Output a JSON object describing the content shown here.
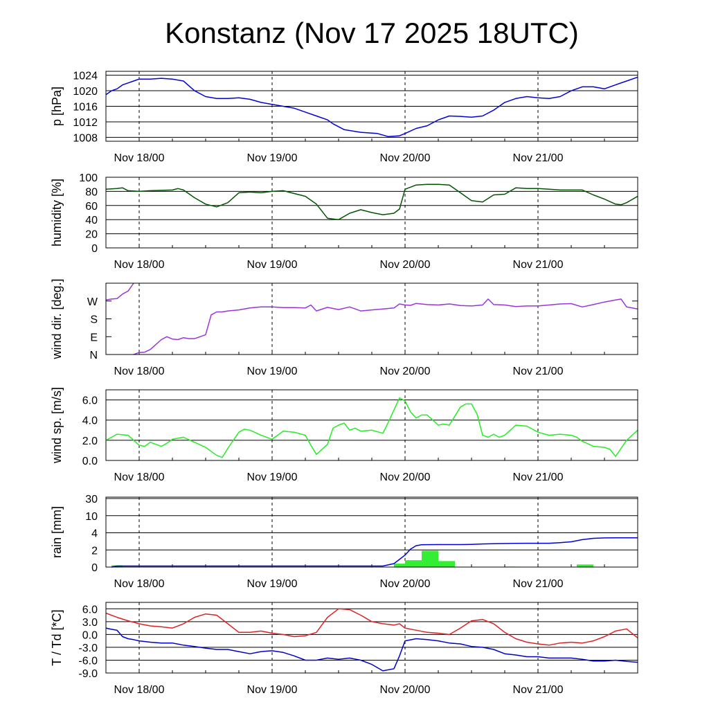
{
  "title": "Konstanz (Nov 17 2025 18UTC)",
  "colors": {
    "pressure": "#0000dd",
    "humidity": "#005500",
    "wind_dir": "#9933dd",
    "wind_speed": "#22ee22",
    "rain_bar": "#33ee33",
    "rain_cum": "#0000dd",
    "temperature": "#dd2222",
    "dewpoint": "#0000cc"
  },
  "chart_data": [
    {
      "id": "pressure",
      "type": "line",
      "ylabel": "p [hPa]",
      "ylim": [
        1007,
        1025
      ],
      "yticks": [
        1008,
        1012,
        1016,
        1020,
        1024
      ],
      "ytick_labels": [
        "1008",
        "1012",
        "1016",
        "1020",
        "1024"
      ],
      "xlim": [
        0,
        96
      ],
      "x_ticks": [
        6,
        30,
        54,
        78
      ],
      "x_tick_labels": [
        "Nov 18/00",
        "Nov 19/00",
        "Nov 20/00",
        "Nov 21/00"
      ],
      "series": [
        {
          "name": "pressure",
          "x": [
            0,
            1,
            2,
            3,
            4,
            5,
            6,
            8,
            10,
            12,
            14,
            16,
            18,
            20,
            22,
            24,
            26,
            28,
            30,
            32,
            34,
            36,
            38,
            40,
            41,
            43,
            46,
            49,
            51,
            53,
            54,
            56,
            58,
            60,
            62,
            64,
            66,
            68,
            70,
            72,
            74,
            76,
            78,
            80,
            82,
            84,
            86,
            88,
            90,
            92,
            94,
            96
          ],
          "values": [
            1019,
            1020,
            1020.5,
            1021.5,
            1022,
            1022.5,
            1023,
            1023,
            1023.2,
            1023,
            1022.5,
            1020,
            1018.5,
            1018,
            1018,
            1018.2,
            1017.8,
            1017,
            1016.5,
            1016,
            1015.5,
            1014.5,
            1013.5,
            1012.5,
            1011.5,
            1010,
            1009.3,
            1009,
            1008.2,
            1008.4,
            1009,
            1010.3,
            1011,
            1012.5,
            1013.5,
            1013.4,
            1013.2,
            1013.5,
            1015,
            1017,
            1018,
            1018.5,
            1018.2,
            1018,
            1018.5,
            1020,
            1021,
            1021,
            1020.5,
            1021.5,
            1022.5,
            1023.5
          ]
        }
      ]
    },
    {
      "id": "humidity",
      "type": "line",
      "ylabel": "humidity [%]",
      "ylim": [
        0,
        100
      ],
      "yticks": [
        0,
        20,
        40,
        60,
        80,
        100
      ],
      "ytick_labels": [
        "0",
        "20",
        "40",
        "60",
        "80",
        "100"
      ],
      "xlim": [
        0,
        96
      ],
      "x_ticks": [
        6,
        30,
        54,
        78
      ],
      "x_tick_labels": [
        "Nov 18/00",
        "Nov 19/00",
        "Nov 20/00",
        "Nov 21/00"
      ],
      "series": [
        {
          "name": "humidity",
          "x": [
            0,
            2,
            3,
            4,
            6,
            8,
            10,
            12,
            13,
            14,
            16,
            18,
            20,
            22,
            24,
            26,
            28,
            30,
            32,
            34,
            36,
            38,
            40,
            42,
            44,
            46,
            48,
            50,
            52,
            53,
            54,
            56,
            58,
            60,
            62,
            64,
            66,
            68,
            70,
            72,
            74,
            76,
            78,
            80,
            82,
            84,
            86,
            88,
            90,
            92,
            93,
            94,
            96
          ],
          "values": [
            83,
            84,
            85,
            81,
            80,
            81,
            81.5,
            82,
            84,
            82,
            71,
            62,
            58,
            64,
            78,
            79,
            78,
            80,
            81,
            77,
            73,
            62,
            42,
            40,
            49,
            54,
            50,
            47,
            49,
            55,
            83,
            89,
            90,
            90,
            89,
            78,
            67,
            65,
            75,
            76,
            85,
            84,
            84,
            83,
            82,
            82,
            82,
            75,
            69,
            62,
            61,
            64,
            73
          ]
        }
      ]
    },
    {
      "id": "wind_direction",
      "type": "line",
      "ylabel": "wind dir. [deg.]",
      "ylim": [
        0,
        360
      ],
      "yticks": [
        0,
        90,
        180,
        270
      ],
      "ytick_labels": [
        "N",
        "E",
        "S",
        "W"
      ],
      "xlim": [
        0,
        96
      ],
      "x_ticks": [
        6,
        30,
        54,
        78
      ],
      "x_tick_labels": [
        "Nov 18/00",
        "Nov 19/00",
        "Nov 20/00",
        "Nov 21/00"
      ],
      "series": [
        {
          "name": "wind direction",
          "x": [
            0,
            1,
            2,
            3,
            4,
            5
          ],
          "values": [
            275,
            280,
            282,
            305,
            320,
            360
          ]
        },
        {
          "name": "wind direction (wrapped)",
          "x": [
            5,
            6,
            7,
            8,
            9,
            10,
            11,
            12,
            13,
            14,
            15,
            16,
            17,
            18,
            19,
            20,
            21,
            22,
            24,
            26,
            28,
            30,
            32,
            34,
            36,
            37,
            38,
            40,
            42,
            44,
            46,
            48,
            50,
            52,
            53,
            54,
            55,
            56,
            58,
            60,
            62,
            64,
            66,
            68,
            69,
            70,
            72,
            74,
            76,
            78,
            80,
            82,
            84,
            86,
            88,
            90,
            92,
            93,
            94,
            96
          ],
          "values": [
            0,
            10,
            12,
            25,
            50,
            75,
            90,
            78,
            75,
            85,
            80,
            80,
            90,
            100,
            200,
            215,
            215,
            220,
            225,
            235,
            240,
            240,
            237,
            237,
            235,
            250,
            220,
            238,
            227,
            240,
            220,
            225,
            230,
            235,
            255,
            250,
            248,
            258,
            252,
            250,
            255,
            247,
            245,
            250,
            280,
            252,
            250,
            242,
            245,
            245,
            250,
            255,
            257,
            240,
            252,
            265,
            275,
            280,
            240,
            230
          ]
        }
      ]
    },
    {
      "id": "wind_speed",
      "type": "line",
      "ylabel": "wind sp. [m/s]",
      "ylim": [
        0,
        7
      ],
      "yticks": [
        0,
        2,
        4,
        6
      ],
      "ytick_labels": [
        "0.0",
        "2.0",
        "4.0",
        "6.0"
      ],
      "xlim": [
        0,
        96
      ],
      "x_ticks": [
        6,
        30,
        54,
        78
      ],
      "x_tick_labels": [
        "Nov 18/00",
        "Nov 19/00",
        "Nov 20/00",
        "Nov 21/00"
      ],
      "series": [
        {
          "name": "wind speed",
          "x": [
            0,
            2,
            4,
            6,
            7,
            8,
            9,
            10,
            11,
            12,
            14,
            16,
            18,
            20,
            21,
            22,
            24,
            25,
            26,
            28,
            30,
            31,
            32,
            34,
            36,
            37,
            38,
            40,
            41,
            42,
            43,
            44,
            45,
            46,
            48,
            50,
            51,
            52,
            53,
            54,
            55,
            56,
            57,
            58,
            60,
            61,
            62,
            64,
            65,
            66,
            67,
            68,
            69,
            70,
            71,
            72,
            74,
            76,
            78,
            80,
            82,
            84,
            85,
            86,
            88,
            90,
            91,
            92,
            93,
            94,
            96
          ],
          "values": [
            2.0,
            2.6,
            2.5,
            1.5,
            1.4,
            1.8,
            1.6,
            1.4,
            1.7,
            2.1,
            2.3,
            1.8,
            1.3,
            0.5,
            0.3,
            1.2,
            2.8,
            3.1,
            3.0,
            2.5,
            2.1,
            2.5,
            2.9,
            2.8,
            2.5,
            1.5,
            0.6,
            1.6,
            3.2,
            3.5,
            3.7,
            3.0,
            3.2,
            2.9,
            3.0,
            2.7,
            3.8,
            5.0,
            6.2,
            5.9,
            4.8,
            4.2,
            4.5,
            4.5,
            3.5,
            3.6,
            3.5,
            5.3,
            5.6,
            5.6,
            4.6,
            2.5,
            2.3,
            2.6,
            2.3,
            2.5,
            3.5,
            3.4,
            2.8,
            2.5,
            2.6,
            2.5,
            2.3,
            1.9,
            1.4,
            1.3,
            1.1,
            0.4,
            1.2,
            2.0,
            3.0
          ]
        }
      ]
    },
    {
      "id": "rain",
      "type": "bar+line",
      "ylabel": "rain [mm]",
      "yticks": [
        0,
        2,
        4,
        10,
        30
      ],
      "ytick_labels": [
        "0",
        "2",
        "4",
        "10",
        "30"
      ],
      "xlim": [
        0,
        96
      ],
      "x_ticks": [
        6,
        30,
        54,
        78
      ],
      "x_tick_labels": [
        "Nov 18/00",
        "Nov 19/00",
        "Nov 20/00",
        "Nov 21/00"
      ],
      "series": [
        {
          "name": "hourly precipitation",
          "kind": "bar",
          "x_start": [
            1,
            52,
            54,
            57,
            60,
            72,
            85
          ],
          "x_end": [
            3,
            54,
            57,
            60,
            63,
            74,
            88
          ],
          "values": [
            0.2,
            0.4,
            0.8,
            1.9,
            0.7,
            0.05,
            0.3
          ]
        },
        {
          "name": "accumulated precipitation",
          "kind": "line",
          "x": [
            1,
            2,
            10,
            20,
            30,
            40,
            50,
            52,
            53,
            54,
            55,
            56,
            57,
            58,
            60,
            62,
            64,
            66,
            68,
            70,
            72,
            74,
            76,
            78,
            80,
            82,
            84,
            86,
            88,
            90,
            92,
            94,
            96
          ],
          "values": [
            0,
            0.12,
            0.12,
            0.12,
            0.12,
            0.12,
            0.12,
            0.4,
            0.9,
            1.4,
            2.1,
            2.5,
            2.6,
            2.62,
            2.63,
            2.63,
            2.63,
            2.65,
            2.7,
            2.72,
            2.75,
            2.77,
            2.78,
            2.78,
            2.78,
            2.85,
            2.95,
            3.2,
            3.35,
            3.4,
            3.42,
            3.42,
            3.42
          ]
        }
      ]
    },
    {
      "id": "temperature",
      "type": "line",
      "ylabel": "T / Td [*C]",
      "ylim": [
        -9,
        7.5
      ],
      "yticks": [
        -9,
        -6,
        -3,
        0,
        3,
        6
      ],
      "ytick_labels": [
        "-9.0",
        "-6.0",
        "-3.0",
        "0.0",
        "3.0",
        "6.0"
      ],
      "xlim": [
        0,
        96
      ],
      "x_ticks": [
        6,
        30,
        54,
        78
      ],
      "x_tick_labels": [
        "Nov 18/00",
        "Nov 19/00",
        "Nov 20/00",
        "Nov 21/00"
      ],
      "series": [
        {
          "name": "temperature",
          "x": [
            0,
            2,
            4,
            6,
            8,
            10,
            12,
            14,
            16,
            18,
            20,
            22,
            24,
            26,
            28,
            30,
            32,
            34,
            36,
            38,
            40,
            42,
            44,
            46,
            48,
            50,
            52,
            53,
            54,
            56,
            58,
            60,
            62,
            64,
            66,
            68,
            70,
            72,
            74,
            76,
            78,
            80,
            82,
            84,
            86,
            88,
            90,
            92,
            94,
            96
          ],
          "values": [
            5.0,
            4.0,
            3.2,
            2.5,
            2.0,
            1.8,
            1.5,
            2.5,
            4.0,
            4.8,
            4.5,
            2.5,
            0.5,
            0.5,
            0.8,
            0.3,
            0.0,
            -0.5,
            -0.3,
            0.5,
            4.0,
            6.0,
            5.8,
            4.5,
            3.0,
            2.5,
            2.2,
            2.5,
            1.5,
            1.0,
            0.5,
            0.3,
            0.0,
            1.5,
            3.2,
            3.5,
            2.5,
            0.5,
            -1.0,
            -1.8,
            -2.2,
            -2.5,
            -2.0,
            -1.8,
            -2.0,
            -1.5,
            -0.5,
            0.8,
            1.3,
            -0.8
          ]
        },
        {
          "name": "dewpoint",
          "x": [
            0,
            1,
            2,
            3,
            4,
            5,
            6,
            8,
            10,
            12,
            14,
            16,
            18,
            20,
            22,
            24,
            26,
            28,
            30,
            32,
            34,
            36,
            38,
            40,
            42,
            44,
            46,
            48,
            50,
            52,
            53,
            54,
            56,
            58,
            60,
            62,
            64,
            66,
            68,
            70,
            72,
            74,
            76,
            78,
            80,
            82,
            84,
            86,
            88,
            90,
            92,
            94,
            96
          ],
          "values": [
            1.5,
            1.2,
            1.0,
            -0.5,
            -1.0,
            -1.2,
            -1.5,
            -1.8,
            -2.0,
            -2.0,
            -2.5,
            -2.8,
            -3.2,
            -3.5,
            -3.5,
            -4.0,
            -4.5,
            -4.0,
            -3.8,
            -4.2,
            -5.0,
            -6.0,
            -6.0,
            -5.5,
            -5.8,
            -5.5,
            -6.0,
            -7.0,
            -8.5,
            -8.0,
            -5.0,
            -1.5,
            -1.0,
            -1.2,
            -1.5,
            -2.0,
            -2.2,
            -2.8,
            -3.0,
            -3.5,
            -4.5,
            -4.8,
            -5.2,
            -5.2,
            -5.5,
            -5.5,
            -5.5,
            -5.8,
            -6.2,
            -6.2,
            -6.0,
            -6.3,
            -6.5
          ]
        }
      ]
    }
  ]
}
